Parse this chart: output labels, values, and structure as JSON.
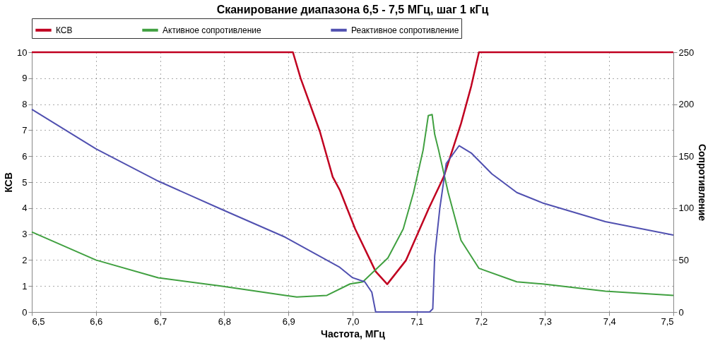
{
  "chart_data": {
    "type": "line",
    "title": "Сканирование диапазона 6,5 - 7,5 МГц, шаг 1 кГц",
    "xlabel": "Частота, МГц",
    "ylabel": "КСВ",
    "y2label": "Сопротивление",
    "series": [
      {
        "name": "КСВ",
        "color": "#c00020",
        "x": [
          6.5,
          6.907,
          6.919,
          6.949,
          6.969,
          6.98,
          7.004,
          7.036,
          7.054,
          7.083,
          7.119,
          7.142,
          7.169,
          7.185,
          7.197,
          7.5
        ],
        "values": [
          10,
          10,
          9.0,
          6.95,
          5.2,
          4.7,
          3.2,
          1.56,
          1.07,
          1.98,
          4.0,
          5.2,
          7.25,
          8.7,
          10,
          10
        ]
      },
      {
        "name": "Активное сопротивление",
        "color": "#40a040",
        "axis": "y2",
        "x": [
          6.5,
          6.6,
          6.697,
          6.795,
          6.895,
          6.913,
          6.96,
          6.996,
          7.016,
          7.055,
          7.079,
          7.095,
          7.11,
          7.118,
          7.124,
          7.128,
          7.134,
          7.149,
          7.169,
          7.197,
          7.256,
          7.296,
          7.394,
          7.5
        ],
        "values": [
          77,
          50,
          33,
          25,
          16,
          14.5,
          16,
          27,
          29,
          52,
          80,
          115,
          156,
          189,
          190,
          171,
          156,
          115,
          69,
          42,
          29,
          27,
          20,
          16
        ]
      },
      {
        "name": "Реактивное сопротивление",
        "color": "#5050b0",
        "axis": "y2",
        "x": [
          6.5,
          6.6,
          6.697,
          6.795,
          6.895,
          6.98,
          7.0,
          7.019,
          7.03,
          7.036,
          7.12,
          7.125,
          7.128,
          7.136,
          7.146,
          7.166,
          7.185,
          7.217,
          7.256,
          7.296,
          7.394,
          7.5
        ],
        "values": [
          195,
          157,
          126,
          99,
          72,
          43,
          33,
          29,
          19,
          0,
          0,
          3,
          54,
          100,
          143,
          160,
          153,
          133,
          115,
          105,
          87,
          74
        ]
      }
    ],
    "xlim": [
      6.5,
      7.5
    ],
    "xticks": [
      {
        "value": 6.5,
        "label": "6,5"
      },
      {
        "value": 6.6,
        "label": "6,6"
      },
      {
        "value": 6.7,
        "label": "6,7"
      },
      {
        "value": 6.8,
        "label": "6,8"
      },
      {
        "value": 6.9,
        "label": "6,9"
      },
      {
        "value": 7.0,
        "label": "7,0"
      },
      {
        "value": 7.1,
        "label": "7,1"
      },
      {
        "value": 7.2,
        "label": "7,2"
      },
      {
        "value": 7.3,
        "label": "7,3"
      },
      {
        "value": 7.4,
        "label": "7,4"
      },
      {
        "value": 7.5,
        "label": "7,5"
      }
    ],
    "ylim": [
      0,
      10
    ],
    "yticks": [
      0,
      1,
      2,
      3,
      4,
      5,
      6,
      7,
      8,
      9,
      10
    ],
    "y2lim": [
      0,
      250
    ],
    "y2ticks": [
      0,
      50,
      100,
      150,
      200,
      250
    ],
    "grid": true,
    "legend": "top",
    "line_style": "solid",
    "marker": "none"
  }
}
